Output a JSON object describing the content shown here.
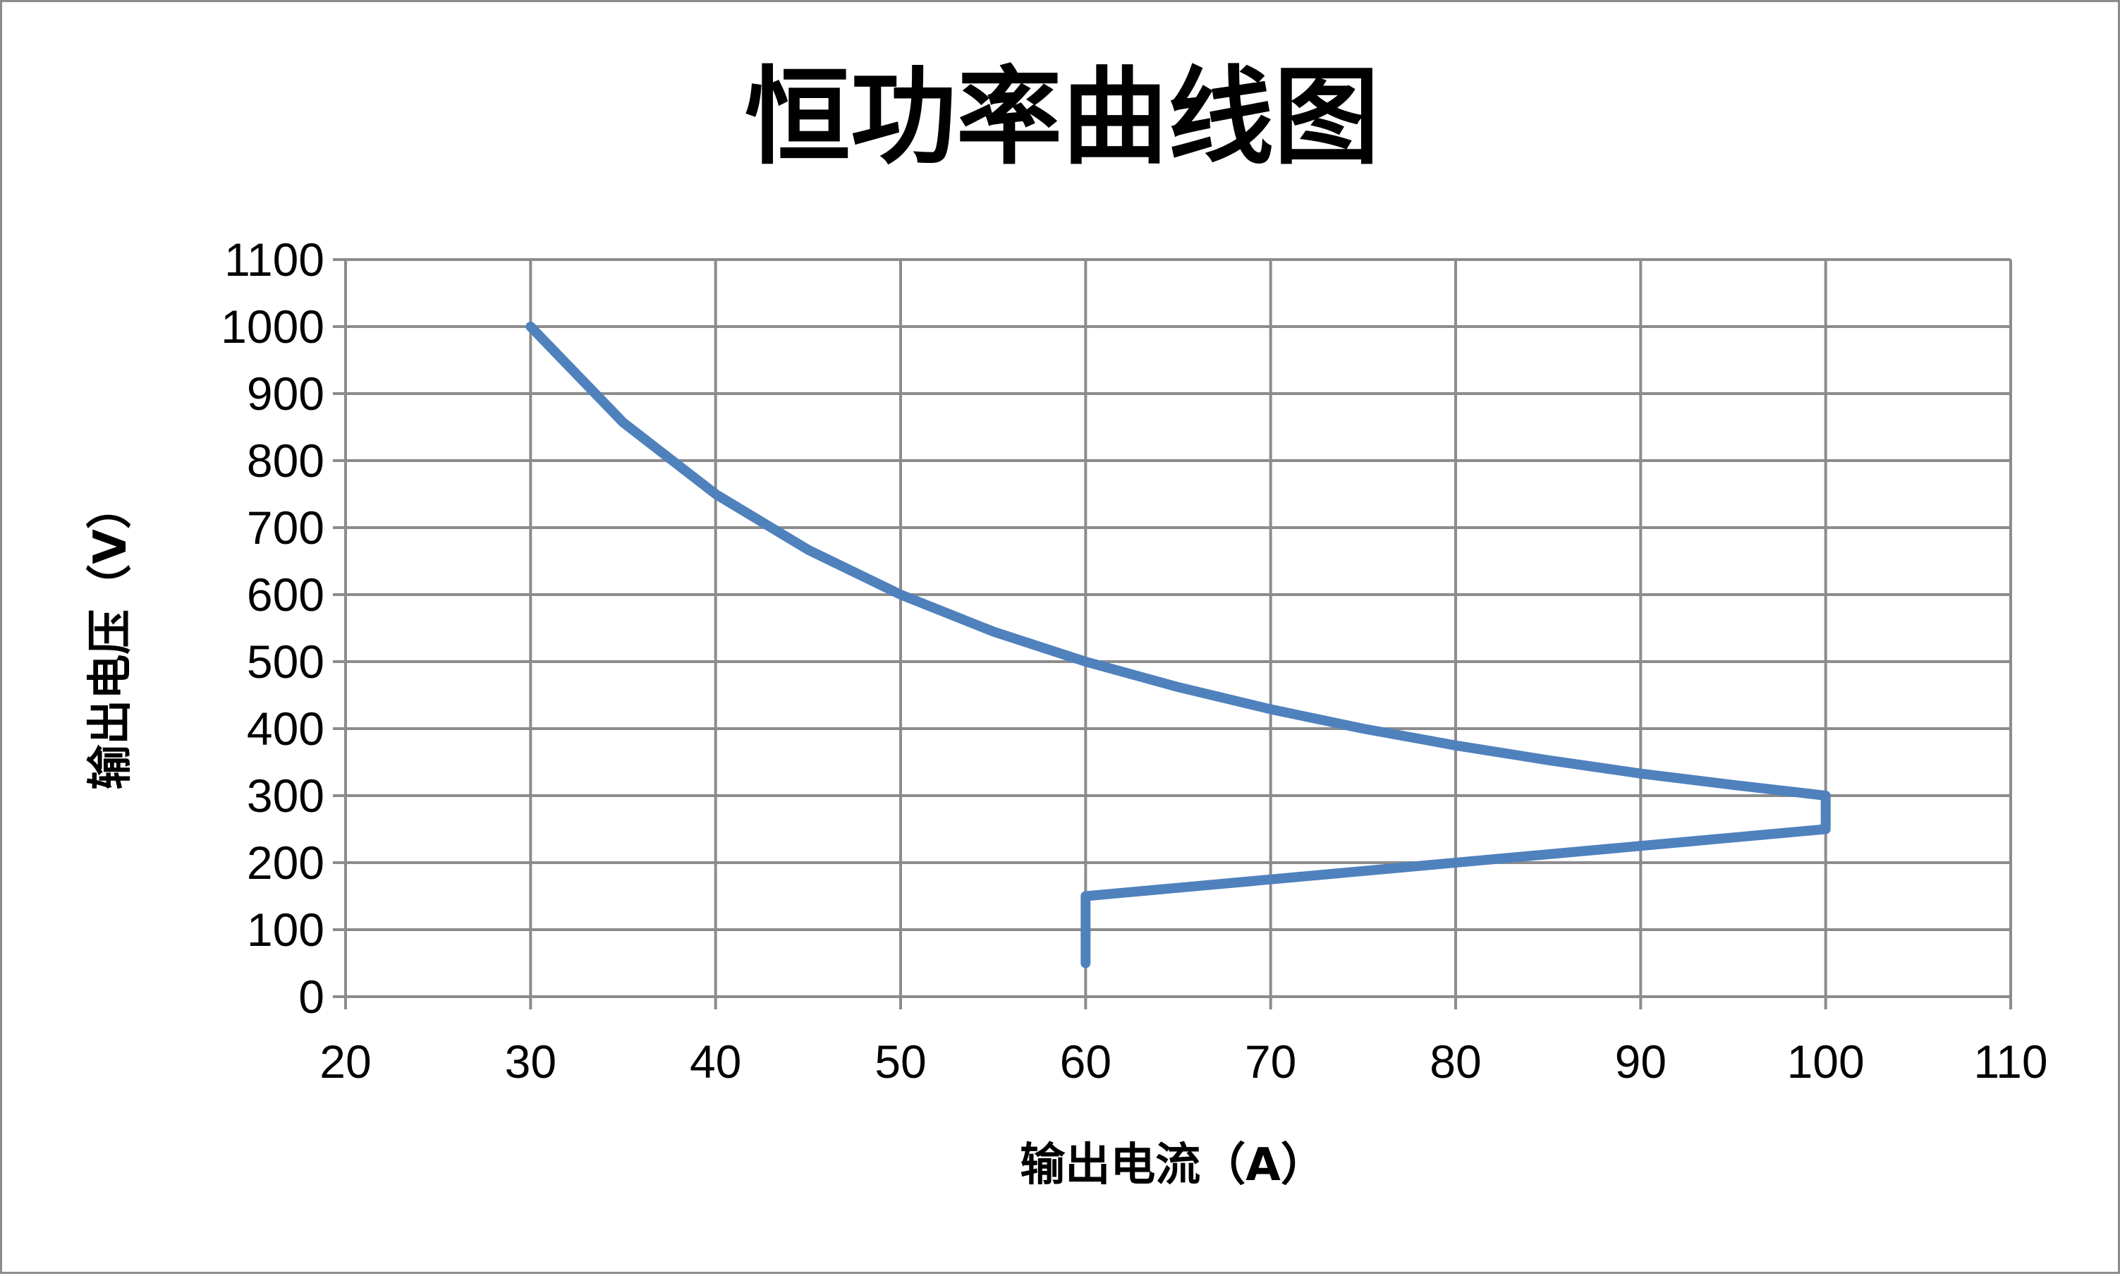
{
  "chart_data": {
    "type": "line",
    "title": "恒功率曲线图",
    "xlabel": "输出电流（A）",
    "ylabel": "输出电压（V）",
    "xlim": [
      20,
      110
    ],
    "ylim": [
      0,
      1100
    ],
    "x_ticks": [
      "20",
      "30",
      "40",
      "50",
      "60",
      "70",
      "80",
      "90",
      "100",
      "110"
    ],
    "y_ticks": [
      "0",
      "100",
      "200",
      "300",
      "400",
      "500",
      "600",
      "700",
      "800",
      "900",
      "1000",
      "1100"
    ],
    "grid": true,
    "legend": "none",
    "series": [
      {
        "color": "#4f81bd",
        "x": [
          30,
          35,
          40,
          45,
          50,
          55,
          60,
          65,
          70,
          75,
          80,
          85,
          90,
          95,
          100,
          100,
          60,
          60
        ],
        "y": [
          1000,
          857,
          750,
          667,
          600,
          545,
          500,
          462,
          429,
          400,
          375,
          353,
          333,
          316,
          300,
          250,
          150,
          50
        ]
      }
    ]
  }
}
